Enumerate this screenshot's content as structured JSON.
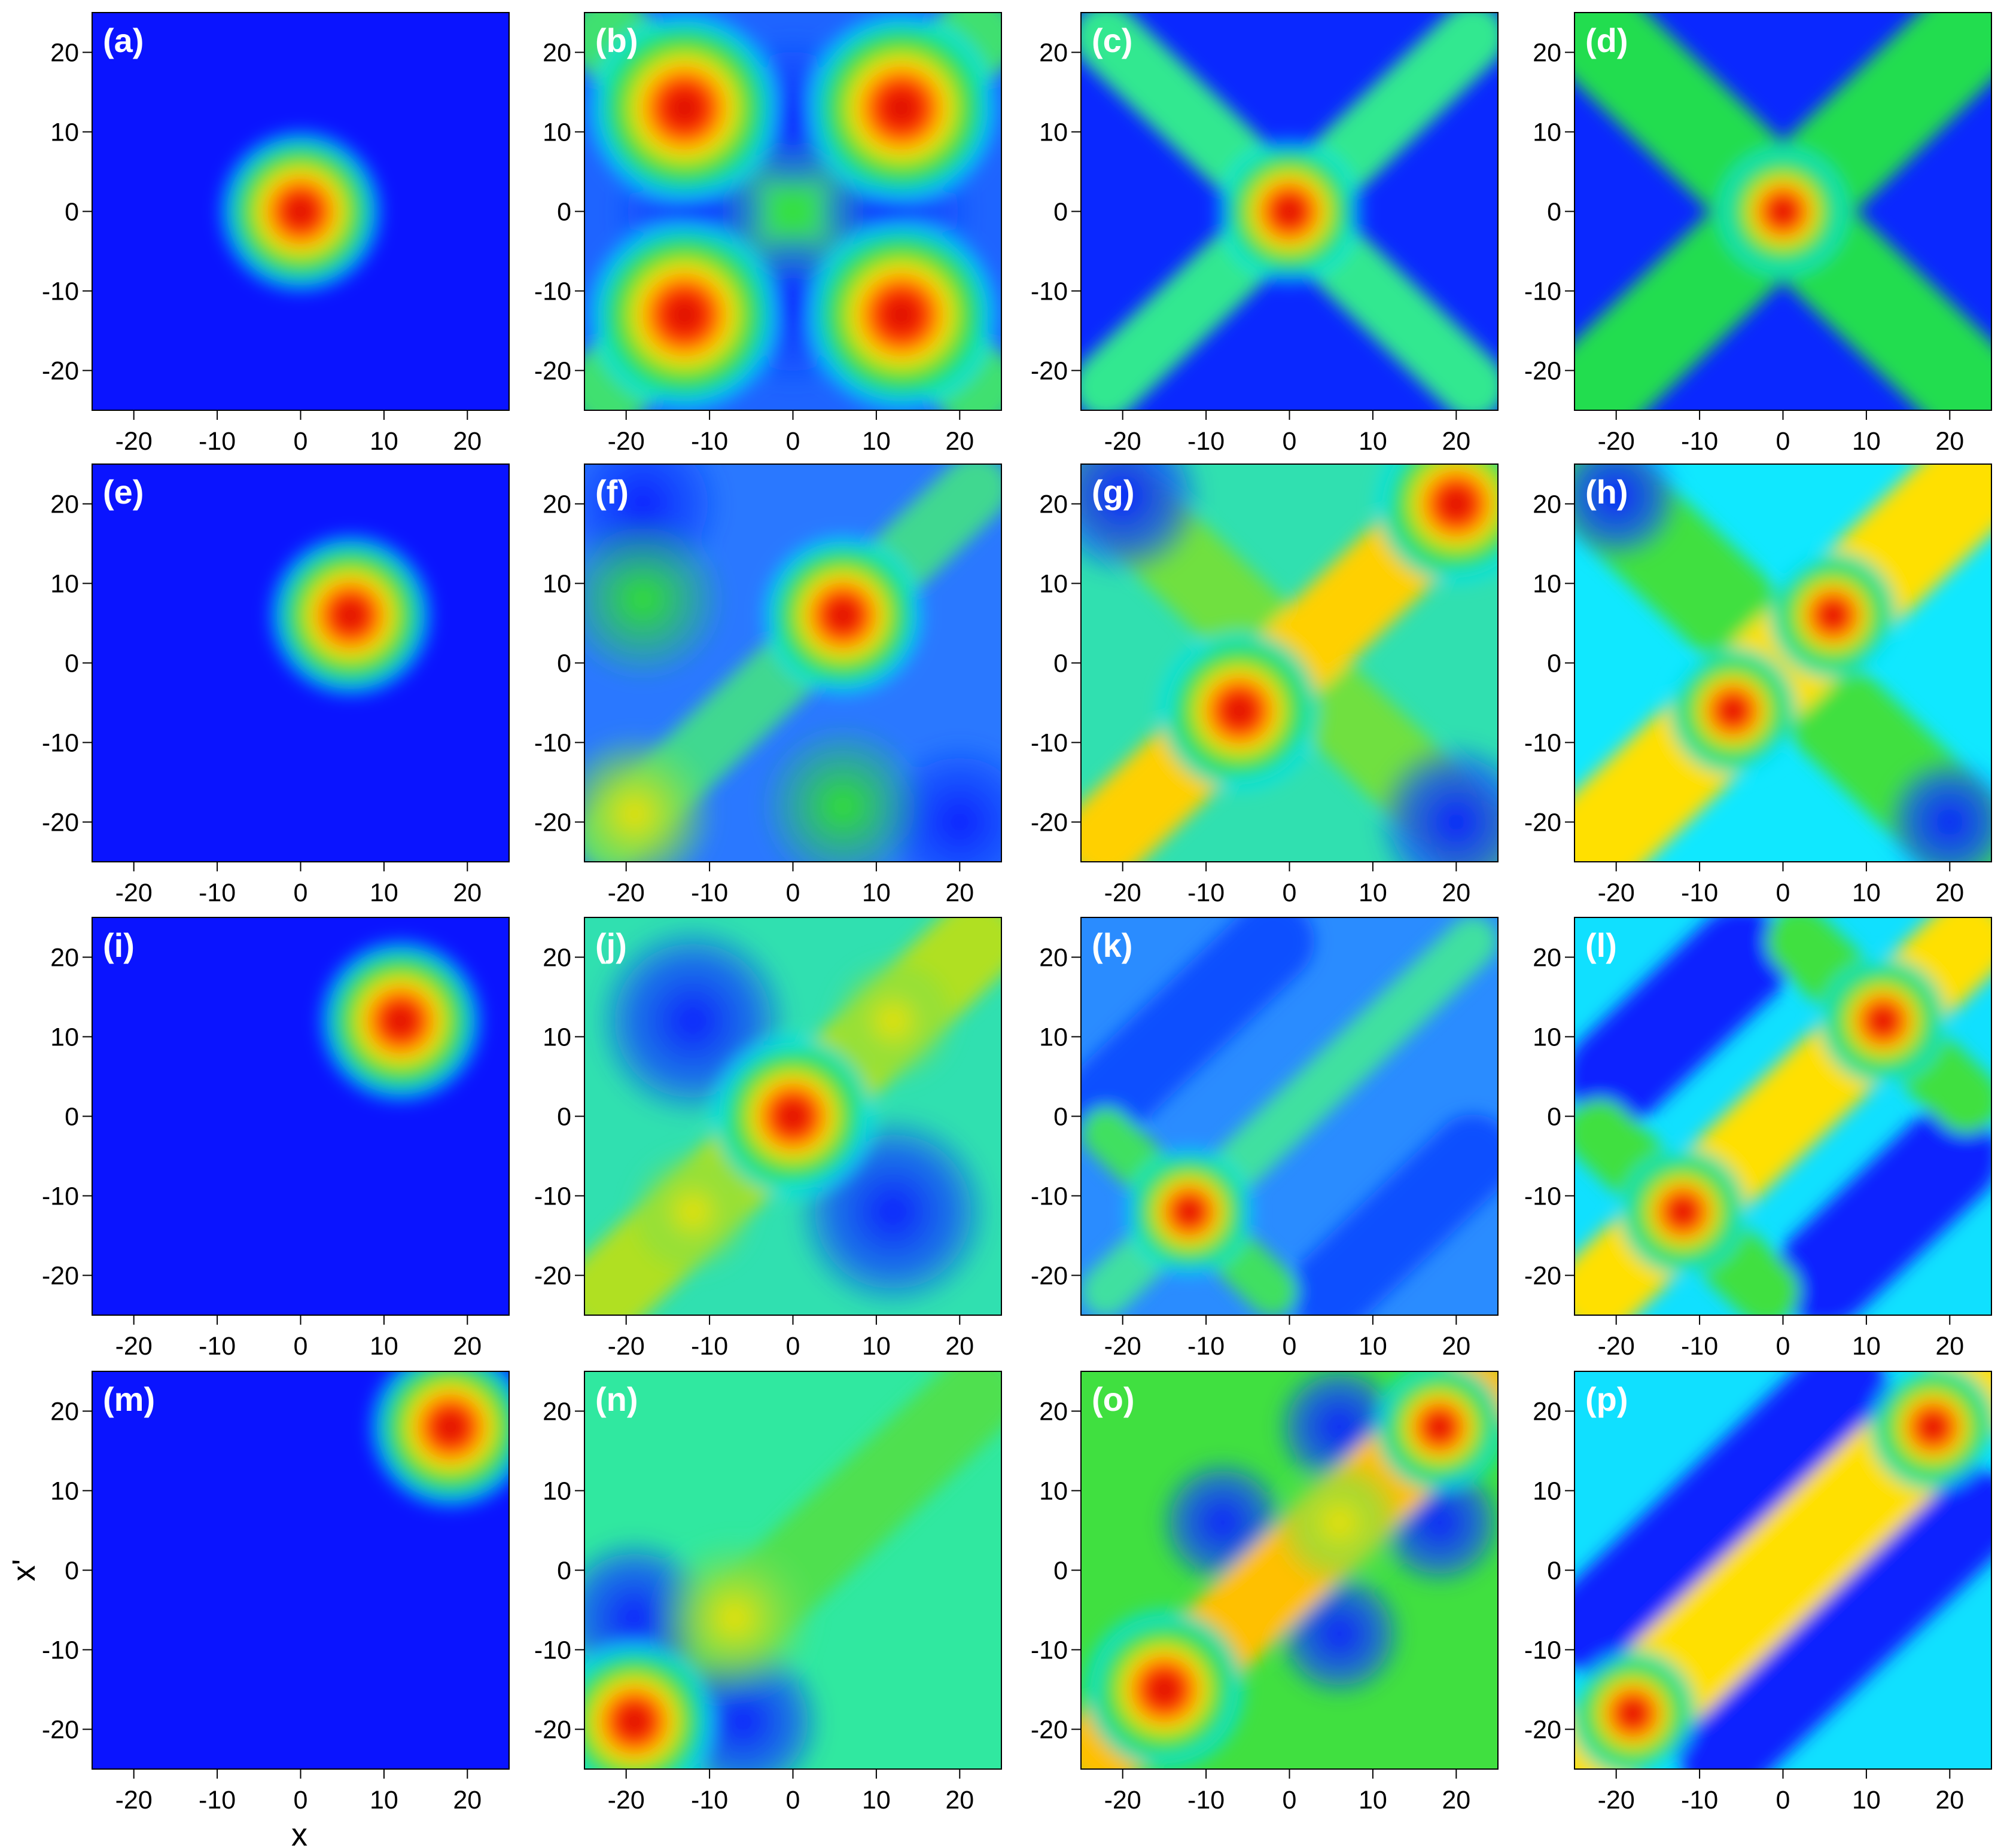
{
  "chart_data": [
    {
      "type": "heatmap",
      "label": "(a)",
      "xlim": [
        -25,
        25
      ],
      "ylim": [
        -25,
        25
      ],
      "xticks": [
        -20,
        -10,
        0,
        10,
        20
      ],
      "yticks": [
        -20,
        -10,
        0,
        10,
        20
      ]
    },
    {
      "type": "heatmap",
      "label": "(b)",
      "xlim": [
        -25,
        25
      ],
      "ylim": [
        -25,
        25
      ],
      "xticks": [
        -20,
        -10,
        0,
        10,
        20
      ],
      "yticks": [
        -20,
        -10,
        0,
        10,
        20
      ]
    },
    {
      "type": "heatmap",
      "label": "(c)",
      "xlim": [
        -25,
        25
      ],
      "ylim": [
        -25,
        25
      ],
      "xticks": [
        -20,
        -10,
        0,
        10,
        20
      ],
      "yticks": [
        -20,
        -10,
        0,
        10,
        20
      ]
    },
    {
      "type": "heatmap",
      "label": "(d)",
      "xlim": [
        -25,
        25
      ],
      "ylim": [
        -25,
        25
      ],
      "xticks": [
        -20,
        -10,
        0,
        10,
        20
      ],
      "yticks": [
        -20,
        -10,
        0,
        10,
        20
      ]
    },
    {
      "type": "heatmap",
      "label": "(e)",
      "xlim": [
        -25,
        25
      ],
      "ylim": [
        -25,
        25
      ],
      "xticks": [
        -20,
        -10,
        0,
        10,
        20
      ],
      "yticks": [
        -20,
        -10,
        0,
        10,
        20
      ]
    },
    {
      "type": "heatmap",
      "label": "(f)",
      "xlim": [
        -25,
        25
      ],
      "ylim": [
        -25,
        25
      ],
      "xticks": [
        -20,
        -10,
        0,
        10,
        20
      ],
      "yticks": [
        -20,
        -10,
        0,
        10,
        20
      ]
    },
    {
      "type": "heatmap",
      "label": "(g)",
      "xlim": [
        -25,
        25
      ],
      "ylim": [
        -25,
        25
      ],
      "xticks": [
        -20,
        -10,
        0,
        10,
        20
      ],
      "yticks": [
        -20,
        -10,
        0,
        10,
        20
      ]
    },
    {
      "type": "heatmap",
      "label": "(h)",
      "xlim": [
        -25,
        25
      ],
      "ylim": [
        -25,
        25
      ],
      "xticks": [
        -20,
        -10,
        0,
        10,
        20
      ],
      "yticks": [
        -20,
        -10,
        0,
        10,
        20
      ]
    },
    {
      "type": "heatmap",
      "label": "(i)",
      "xlim": [
        -25,
        25
      ],
      "ylim": [
        -25,
        25
      ],
      "xticks": [
        -20,
        -10,
        0,
        10,
        20
      ],
      "yticks": [
        -20,
        -10,
        0,
        10,
        20
      ]
    },
    {
      "type": "heatmap",
      "label": "(j)",
      "xlim": [
        -25,
        25
      ],
      "ylim": [
        -25,
        25
      ],
      "xticks": [
        -20,
        -10,
        0,
        10,
        20
      ],
      "yticks": [
        -20,
        -10,
        0,
        10,
        20
      ]
    },
    {
      "type": "heatmap",
      "label": "(k)",
      "xlim": [
        -25,
        25
      ],
      "ylim": [
        -25,
        25
      ],
      "xticks": [
        -20,
        -10,
        0,
        10,
        20
      ],
      "yticks": [
        -20,
        -10,
        0,
        10,
        20
      ]
    },
    {
      "type": "heatmap",
      "label": "(l)",
      "xlim": [
        -25,
        25
      ],
      "ylim": [
        -25,
        25
      ],
      "xticks": [
        -20,
        -10,
        0,
        10,
        20
      ],
      "yticks": [
        -20,
        -10,
        0,
        10,
        20
      ]
    },
    {
      "type": "heatmap",
      "label": "(m)",
      "xlabel": "x",
      "ylabel": "x'",
      "xlim": [
        -25,
        25
      ],
      "ylim": [
        -25,
        25
      ],
      "xticks": [
        -20,
        -10,
        0,
        10,
        20
      ],
      "yticks": [
        -20,
        -10,
        0,
        10,
        20
      ]
    },
    {
      "type": "heatmap",
      "label": "(n)",
      "xlim": [
        -25,
        25
      ],
      "ylim": [
        -25,
        25
      ],
      "xticks": [
        -20,
        -10,
        0,
        10,
        20
      ],
      "yticks": [
        -20,
        -10,
        0,
        10,
        20
      ]
    },
    {
      "type": "heatmap",
      "label": "(o)",
      "xlim": [
        -25,
        25
      ],
      "ylim": [
        -25,
        25
      ],
      "xticks": [
        -20,
        -10,
        0,
        10,
        20
      ],
      "yticks": [
        -20,
        -10,
        0,
        10,
        20
      ]
    },
    {
      "type": "heatmap",
      "label": "(p)",
      "xlim": [
        -25,
        25
      ],
      "ylim": [
        -25,
        25
      ],
      "xticks": [
        -20,
        -10,
        0,
        10,
        20
      ],
      "yticks": [
        -20,
        -10,
        0,
        10,
        20
      ]
    }
  ]
}
